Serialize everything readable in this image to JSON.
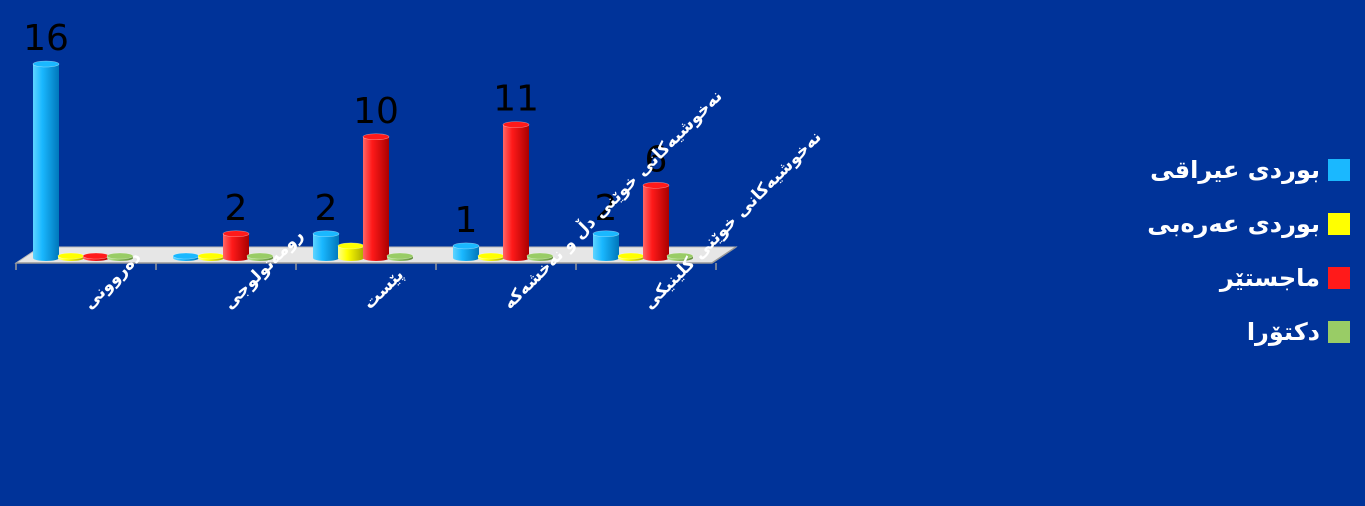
{
  "chart_data": {
    "type": "bar",
    "categories": [
      "دەروونی",
      "رومەتولوجی",
      "پێست",
      "نەخوشیەکانی خوێنی دڵ و نەخشەکە",
      "نەخوشیەکانی خوێنی کلینیکی"
    ],
    "series": [
      {
        "name": "بوردی عیراقی",
        "color": "#1ab8ff",
        "values": [
          16,
          0,
          2,
          1,
          2
        ]
      },
      {
        "name": "بوردی عەرەبی",
        "color": "#ffff00",
        "values": [
          0,
          0,
          1,
          0,
          0
        ]
      },
      {
        "name": "ماجستێر",
        "color": "#ff1a1a",
        "values": [
          0,
          2,
          10,
          11,
          6
        ]
      },
      {
        "name": "دکتۆرا",
        "color": "#99cc66",
        "values": [
          0,
          0,
          0,
          0,
          0
        ]
      }
    ],
    "data_labels": [
      {
        "category": 0,
        "series": 0,
        "text": "16"
      },
      {
        "category": 1,
        "series": 2,
        "text": "2"
      },
      {
        "category": 2,
        "series": 0,
        "text": "2"
      },
      {
        "category": 2,
        "series": 2,
        "text": "10"
      },
      {
        "category": 3,
        "series": 0,
        "text": "1"
      },
      {
        "category": 3,
        "series": 2,
        "text": "11"
      },
      {
        "category": 4,
        "series": 0,
        "text": "2"
      },
      {
        "category": 4,
        "series": 2,
        "text": "6"
      }
    ],
    "ylim": [
      0,
      16
    ],
    "grid": false,
    "legend_position": "right"
  }
}
